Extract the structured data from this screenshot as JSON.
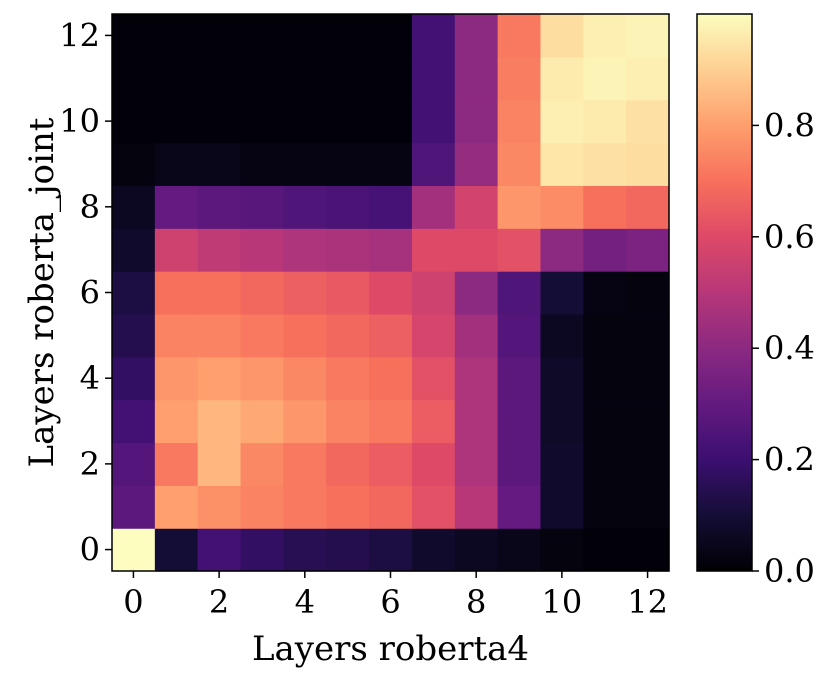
{
  "chart_data": {
    "type": "heatmap",
    "xlabel": "Layers roberta4",
    "ylabel": "Layers roberta_joint",
    "x": [
      0,
      1,
      2,
      3,
      4,
      5,
      6,
      7,
      8,
      9,
      10,
      11,
      12
    ],
    "y": [
      0,
      1,
      2,
      3,
      4,
      5,
      6,
      7,
      8,
      9,
      10,
      11,
      12
    ],
    "x_ticks": [
      0,
      2,
      4,
      6,
      8,
      10,
      12
    ],
    "y_ticks": [
      0,
      2,
      4,
      6,
      8,
      10,
      12
    ],
    "colormap": "magma",
    "vmin": 0.0,
    "vmax": 1.0,
    "colorbar_ticks": [
      0.0,
      0.2,
      0.4,
      0.6,
      0.8
    ],
    "colorbar_tick_labels": [
      "0.0",
      "0.2",
      "0.4",
      "0.6",
      "0.8"
    ],
    "values": [
      [
        1.0,
        0.1,
        0.22,
        0.18,
        0.15,
        0.14,
        0.12,
        0.08,
        0.06,
        0.04,
        0.02,
        0.01,
        0.01
      ],
      [
        0.28,
        0.8,
        0.77,
        0.74,
        0.72,
        0.7,
        0.68,
        0.62,
        0.5,
        0.3,
        0.08,
        0.02,
        0.02
      ],
      [
        0.26,
        0.72,
        0.85,
        0.75,
        0.72,
        0.68,
        0.65,
        0.6,
        0.48,
        0.28,
        0.08,
        0.02,
        0.02
      ],
      [
        0.22,
        0.8,
        0.85,
        0.82,
        0.78,
        0.74,
        0.72,
        0.65,
        0.48,
        0.28,
        0.07,
        0.02,
        0.02
      ],
      [
        0.18,
        0.78,
        0.8,
        0.78,
        0.75,
        0.72,
        0.7,
        0.62,
        0.48,
        0.28,
        0.07,
        0.02,
        0.02
      ],
      [
        0.14,
        0.74,
        0.74,
        0.72,
        0.7,
        0.68,
        0.66,
        0.58,
        0.45,
        0.26,
        0.06,
        0.02,
        0.02
      ],
      [
        0.12,
        0.7,
        0.7,
        0.68,
        0.66,
        0.64,
        0.6,
        0.56,
        0.4,
        0.25,
        0.1,
        0.03,
        0.02
      ],
      [
        0.08,
        0.56,
        0.52,
        0.5,
        0.48,
        0.47,
        0.46,
        0.6,
        0.6,
        0.62,
        0.4,
        0.34,
        0.36
      ],
      [
        0.06,
        0.3,
        0.28,
        0.27,
        0.25,
        0.24,
        0.23,
        0.45,
        0.57,
        0.78,
        0.76,
        0.7,
        0.68
      ],
      [
        0.02,
        0.04,
        0.04,
        0.03,
        0.03,
        0.03,
        0.03,
        0.25,
        0.42,
        0.75,
        0.95,
        0.94,
        0.93
      ],
      [
        0.01,
        0.01,
        0.01,
        0.01,
        0.01,
        0.01,
        0.01,
        0.22,
        0.4,
        0.74,
        0.97,
        0.96,
        0.94
      ],
      [
        0.01,
        0.01,
        0.01,
        0.01,
        0.01,
        0.01,
        0.01,
        0.22,
        0.4,
        0.73,
        0.96,
        0.98,
        0.97
      ],
      [
        0.01,
        0.01,
        0.01,
        0.01,
        0.01,
        0.01,
        0.01,
        0.22,
        0.4,
        0.72,
        0.93,
        0.97,
        0.98
      ]
    ]
  }
}
